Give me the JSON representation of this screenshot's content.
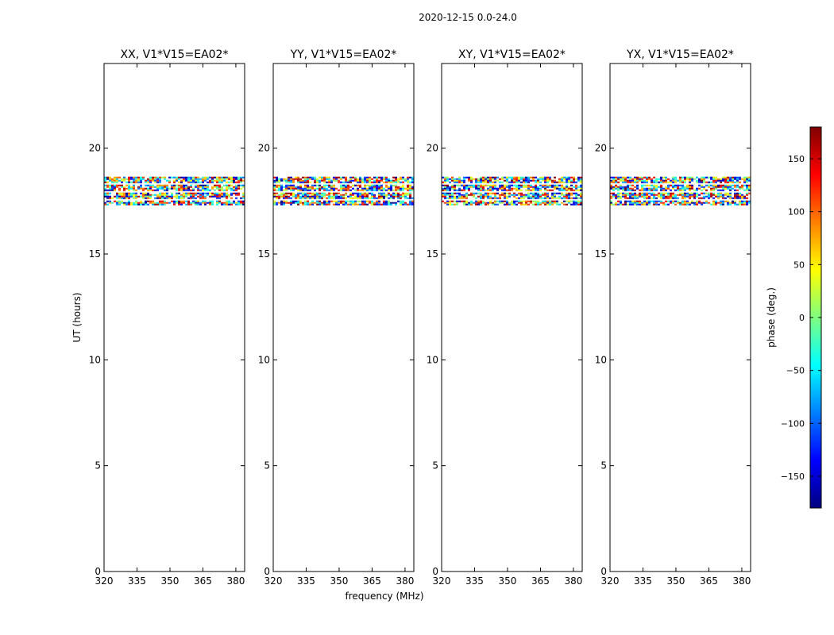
{
  "chart_data": {
    "type": "heatmap",
    "suptitle": "2020-12-15 0.0-24.0",
    "xlabel": "frequency (MHz)",
    "ylabel": "UT (hours)",
    "xlim": [
      320,
      384
    ],
    "ylim": [
      0,
      24
    ],
    "xticks": [
      320,
      335,
      350,
      365,
      380
    ],
    "yticks": [
      0,
      5,
      10,
      15,
      20
    ],
    "panels": [
      {
        "title": "XX, V1*V15=EA02*",
        "data_ut_range": [
          17.3,
          18.65
        ],
        "gap_rows_ut": [
          18.33,
          17.95,
          17.62
        ]
      },
      {
        "title": "YY, V1*V15=EA02*",
        "data_ut_range": [
          17.3,
          18.65
        ],
        "gap_rows_ut": [
          18.33,
          17.95,
          17.62
        ]
      },
      {
        "title": "XY, V1*V15=EA02*",
        "data_ut_range": [
          17.3,
          18.65
        ],
        "gap_rows_ut": [
          18.33,
          17.95,
          17.62
        ]
      },
      {
        "title": "YX, V1*V15=EA02*",
        "data_ut_range": [
          17.3,
          18.65
        ],
        "gap_rows_ut": [
          18.33,
          17.95,
          17.62
        ]
      }
    ],
    "colorbar": {
      "label": "phase (deg.)",
      "range": [
        -180,
        180
      ],
      "ticks": [
        150,
        100,
        50,
        0,
        -50,
        -100,
        -150
      ],
      "tick_labels": [
        "150",
        "100",
        "50",
        "0",
        "−50",
        "−100",
        "−150"
      ],
      "colormap": "jet"
    }
  }
}
